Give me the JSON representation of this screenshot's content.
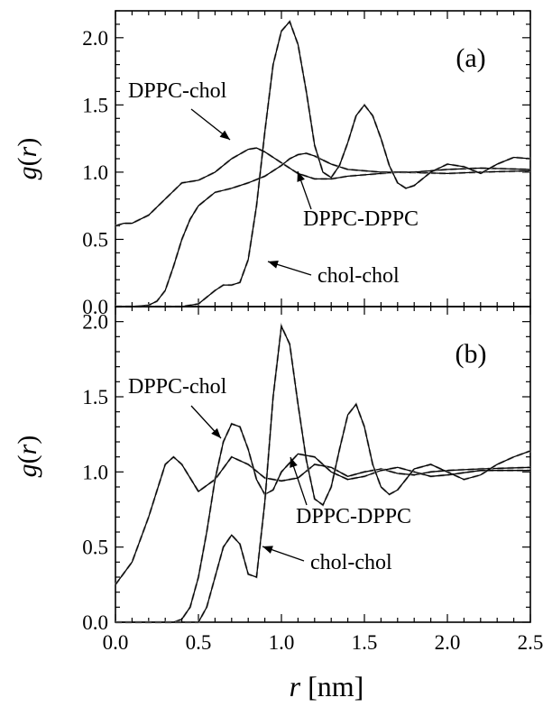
{
  "xlabel": {
    "italic": "r",
    "unit": "[nm]"
  },
  "ylabel": {
    "base": "g",
    "open": "(",
    "italic": "r",
    "close": ")"
  },
  "x_tick_labels": [
    "0.0",
    "0.5",
    "1.0",
    "1.5",
    "2.0",
    "2.5"
  ],
  "chart_data": [
    {
      "type": "line",
      "panel_label": "(a)",
      "xlim": [
        0,
        2.5
      ],
      "ylim": [
        0,
        2.2
      ],
      "y_tick_labels": [
        "0.0",
        "0.5",
        "1.0",
        "1.5",
        "2.0"
      ],
      "line_styles": {
        "solid": "#000000",
        "dashed": "#aaaaaa"
      },
      "series": [
        {
          "name": "DPPC-chol",
          "x": [
            0,
            0.05,
            0.1,
            0.2,
            0.3,
            0.4,
            0.5,
            0.6,
            0.7,
            0.8,
            0.85,
            0.9,
            1.0,
            1.1,
            1.2,
            1.3,
            1.4,
            1.5,
            1.7,
            2.0,
            2.2,
            2.5
          ],
          "y": [
            0.6,
            0.62,
            0.62,
            0.68,
            0.8,
            0.92,
            0.94,
            1.0,
            1.1,
            1.17,
            1.18,
            1.15,
            1.07,
            0.99,
            0.95,
            0.95,
            0.97,
            0.98,
            1.0,
            0.99,
            1.0,
            1.01
          ]
        },
        {
          "name": "DPPC-DPPC",
          "x": [
            0,
            0.1,
            0.2,
            0.25,
            0.3,
            0.35,
            0.4,
            0.45,
            0.5,
            0.55,
            0.6,
            0.7,
            0.8,
            0.9,
            1.0,
            1.05,
            1.1,
            1.15,
            1.2,
            1.3,
            1.4,
            1.5,
            1.6,
            1.8,
            2.0,
            2.2,
            2.5
          ],
          "y": [
            0.0,
            0.0,
            0.01,
            0.04,
            0.12,
            0.3,
            0.5,
            0.65,
            0.75,
            0.8,
            0.85,
            0.88,
            0.92,
            0.97,
            1.05,
            1.1,
            1.13,
            1.14,
            1.12,
            1.06,
            1.02,
            1.01,
            1.0,
            1.0,
            1.02,
            1.03,
            1.02
          ]
        },
        {
          "name": "chol-chol",
          "x": [
            0,
            0.4,
            0.5,
            0.6,
            0.65,
            0.7,
            0.75,
            0.8,
            0.85,
            0.9,
            0.95,
            1.0,
            1.05,
            1.1,
            1.15,
            1.2,
            1.25,
            1.3,
            1.35,
            1.4,
            1.45,
            1.5,
            1.55,
            1.6,
            1.65,
            1.7,
            1.75,
            1.8,
            1.9,
            2.0,
            2.1,
            2.2,
            2.3,
            2.4,
            2.5
          ],
          "y": [
            0.0,
            0.0,
            0.02,
            0.12,
            0.16,
            0.16,
            0.18,
            0.35,
            0.75,
            1.3,
            1.8,
            2.05,
            2.12,
            1.95,
            1.6,
            1.2,
            1.0,
            0.96,
            1.05,
            1.22,
            1.42,
            1.5,
            1.42,
            1.25,
            1.05,
            0.92,
            0.88,
            0.9,
            1.0,
            1.06,
            1.04,
            0.99,
            1.06,
            1.11,
            1.1
          ]
        }
      ]
    },
    {
      "type": "line",
      "panel_label": "(b)",
      "xlim": [
        0,
        2.5
      ],
      "ylim": [
        0,
        2.1
      ],
      "y_tick_labels": [
        "0.0",
        "0.5",
        "1.0",
        "1.5",
        "2.0"
      ],
      "line_styles": {
        "solid": "#000000",
        "dashed": "#aaaaaa"
      },
      "series": [
        {
          "name": "DPPC-chol",
          "x": [
            0,
            0.1,
            0.2,
            0.3,
            0.35,
            0.4,
            0.5,
            0.6,
            0.7,
            0.8,
            0.9,
            1.0,
            1.1,
            1.2,
            1.3,
            1.4,
            1.5,
            1.6,
            1.7,
            1.8,
            1.9,
            2.0,
            2.2,
            2.5
          ],
          "y": [
            0.25,
            0.4,
            0.7,
            1.05,
            1.1,
            1.05,
            0.87,
            0.95,
            1.1,
            1.05,
            0.96,
            0.94,
            0.96,
            1.05,
            1.03,
            0.97,
            1.0,
            1.02,
            0.99,
            0.98,
            1.0,
            1.01,
            1.02,
            1.03
          ]
        },
        {
          "name": "DPPC-DPPC",
          "x": [
            0,
            0.35,
            0.4,
            0.45,
            0.5,
            0.55,
            0.6,
            0.65,
            0.7,
            0.75,
            0.8,
            0.85,
            0.9,
            0.95,
            1.0,
            1.1,
            1.2,
            1.3,
            1.4,
            1.5,
            1.6,
            1.7,
            1.8,
            1.9,
            2.0,
            2.2,
            2.5
          ],
          "y": [
            0.0,
            0.0,
            0.02,
            0.1,
            0.3,
            0.6,
            0.95,
            1.2,
            1.32,
            1.3,
            1.15,
            0.95,
            0.85,
            0.88,
            1.0,
            1.12,
            1.1,
            1.0,
            0.95,
            0.97,
            1.01,
            1.03,
            1.0,
            0.97,
            0.98,
            1.01,
            1.01
          ]
        },
        {
          "name": "chol-chol",
          "x": [
            0,
            0.5,
            0.55,
            0.6,
            0.65,
            0.7,
            0.75,
            0.8,
            0.85,
            0.9,
            0.95,
            1.0,
            1.05,
            1.1,
            1.15,
            1.2,
            1.25,
            1.3,
            1.35,
            1.4,
            1.45,
            1.5,
            1.55,
            1.6,
            1.65,
            1.7,
            1.75,
            1.8,
            1.9,
            2.0,
            2.1,
            2.2,
            2.3,
            2.4,
            2.5
          ],
          "y": [
            0.0,
            0.0,
            0.1,
            0.3,
            0.5,
            0.58,
            0.52,
            0.32,
            0.3,
            0.8,
            1.5,
            1.97,
            1.85,
            1.45,
            1.08,
            0.82,
            0.78,
            0.9,
            1.15,
            1.38,
            1.45,
            1.3,
            1.05,
            0.9,
            0.85,
            0.88,
            0.95,
            1.02,
            1.05,
            1.0,
            0.95,
            0.98,
            1.05,
            1.1,
            1.14
          ]
        }
      ],
      "annotations": []
    }
  ],
  "annotations": [
    {
      "panel": 0,
      "text": "DPPC-chol"
    },
    {
      "panel": 0,
      "text": "DPPC-DPPC"
    },
    {
      "panel": 0,
      "text": "chol-chol"
    },
    {
      "panel": 1,
      "text": "DPPC-chol"
    },
    {
      "panel": 1,
      "text": "DPPC-DPPC"
    },
    {
      "panel": 1,
      "text": "chol-chol"
    }
  ]
}
